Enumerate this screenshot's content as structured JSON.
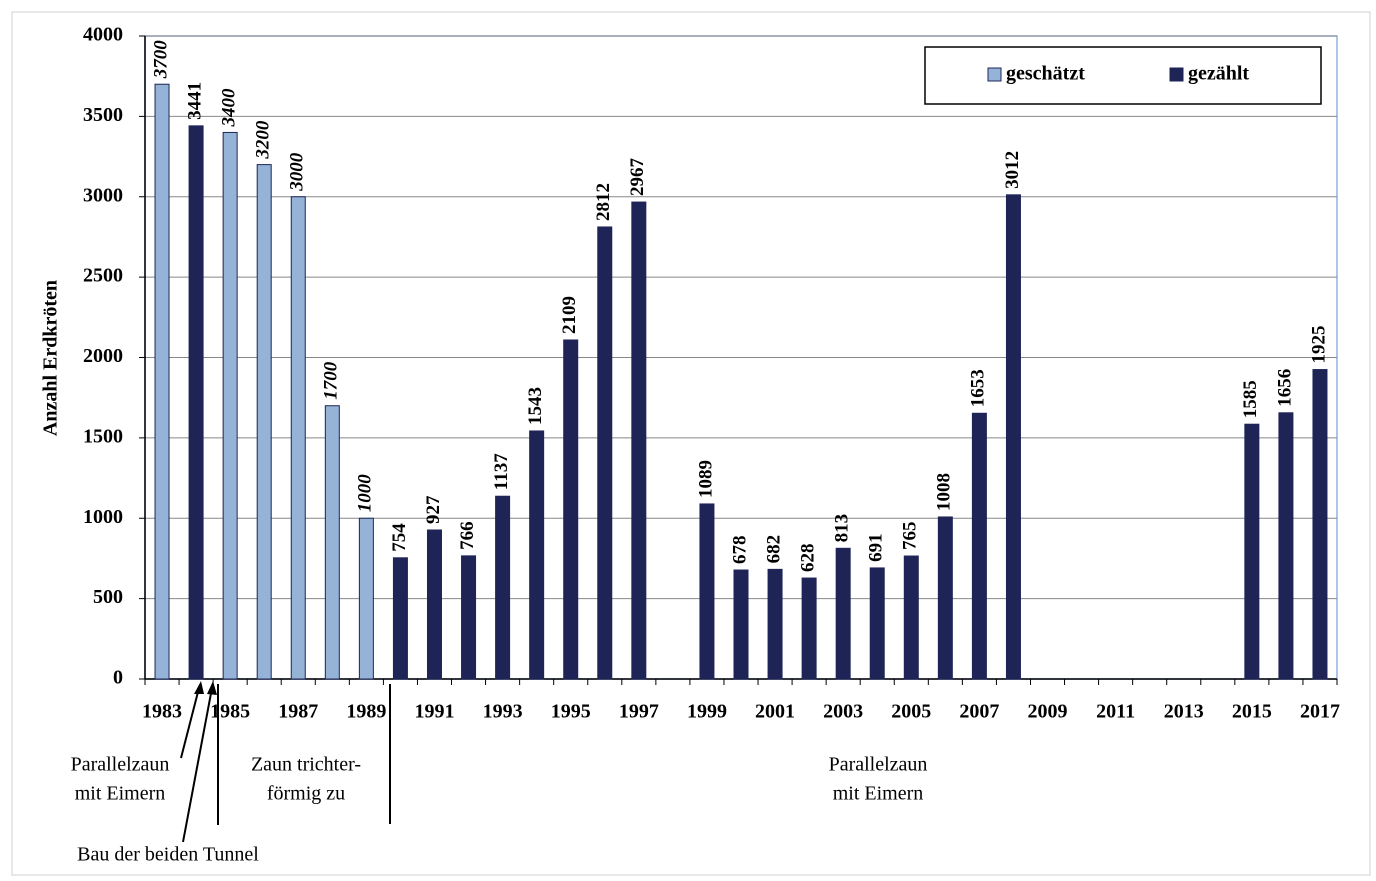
{
  "chart_data": {
    "type": "bar",
    "y_label": "Anzahl Erdkröten",
    "categories": [
      "1983",
      null,
      "1985",
      null,
      "1987",
      null,
      "1989",
      null,
      "1991",
      null,
      "1993",
      null,
      "1995",
      null,
      "1997",
      null,
      "1999",
      null,
      "2001",
      null,
      "2003",
      null,
      "2005",
      null,
      "2007",
      null,
      "2009",
      null,
      "2011",
      null,
      "2013",
      null,
      "2015",
      null,
      "2017"
    ],
    "series": [
      {
        "name": "geschätzt",
        "color": "#95b3d7",
        "italic_labels": true,
        "values": [
          3700,
          null,
          3400,
          3200,
          3000,
          1700,
          1000,
          null,
          null,
          null,
          null,
          null,
          null,
          null,
          null,
          null,
          null,
          null,
          null,
          null,
          null,
          null,
          null,
          null,
          null,
          null,
          null,
          null,
          null,
          null,
          null,
          null,
          null,
          null,
          null
        ]
      },
      {
        "name": "gezählt",
        "color": "#1f2457",
        "values": [
          null,
          3441,
          null,
          null,
          null,
          null,
          null,
          754,
          927,
          766,
          1137,
          1543,
          2109,
          2812,
          2967,
          null,
          1089,
          678,
          682,
          628,
          813,
          691,
          765,
          1008,
          1653,
          3012,
          null,
          null,
          null,
          null,
          null,
          null,
          1585,
          1656,
          1925
        ]
      }
    ],
    "ylim": [
      0,
      4000
    ],
    "yticks": [
      0,
      500,
      1000,
      1500,
      2000,
      2500,
      3000,
      3500,
      4000
    ],
    "grid": true,
    "legend": "upper right",
    "annotations": [
      {
        "lines": [
          "Parallelzaun",
          "mit Eimern"
        ]
      },
      {
        "lines": [
          "Bau der beiden Tunnel"
        ]
      },
      {
        "lines": [
          "Zaun trichter-",
          "förmig zu"
        ]
      },
      {
        "lines": [
          "Parallelzaun",
          "mit Eimern"
        ]
      }
    ]
  }
}
